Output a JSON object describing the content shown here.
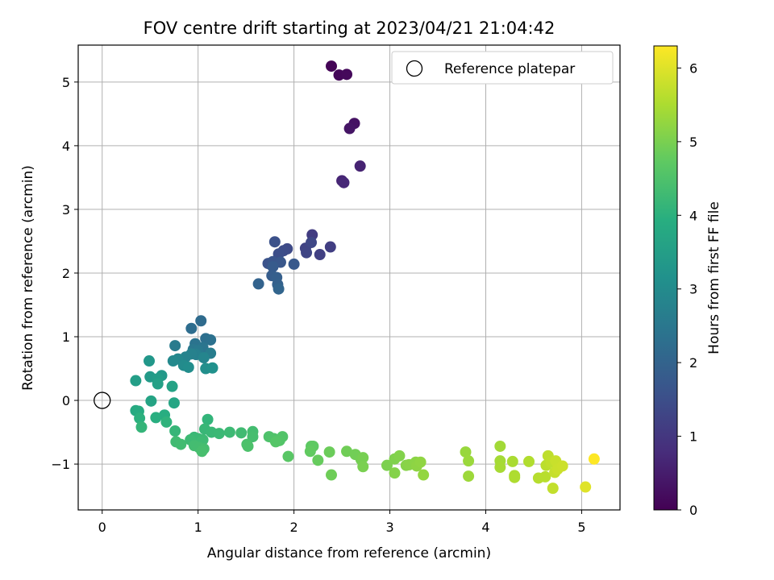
{
  "chart_data": {
    "type": "scatter",
    "title": "FOV centre drift starting at 2023/04/21 21:04:42",
    "xlabel": "Angular distance from reference (arcmin)",
    "ylabel": "Rotation from reference (arcmin)",
    "xlim": [
      -0.25,
      5.4
    ],
    "ylim": [
      -1.72,
      5.58
    ],
    "xticks": [
      0,
      1,
      2,
      3,
      4,
      5
    ],
    "yticks": [
      -1,
      0,
      1,
      2,
      3,
      4,
      5
    ],
    "grid": true,
    "legend": {
      "placement": "top-right",
      "entries": [
        "Reference platepar"
      ]
    },
    "colormap": "viridis",
    "colorbar": {
      "label": "Hours from first FF file",
      "range": [
        0,
        6.3
      ],
      "ticks": [
        0,
        1,
        2,
        3,
        4,
        5,
        6
      ]
    },
    "reference_point": {
      "name": "Reference platepar",
      "x": 0,
      "y": 0
    },
    "point_fields": [
      "x",
      "y",
      "hours"
    ],
    "points": [
      [
        2.39,
        5.25,
        0.05
      ],
      [
        2.47,
        5.11,
        0.1
      ],
      [
        2.55,
        5.12,
        0.15
      ],
      [
        2.63,
        4.35,
        0.3
      ],
      [
        2.58,
        4.27,
        0.35
      ],
      [
        2.69,
        3.68,
        0.6
      ],
      [
        2.5,
        3.45,
        0.65
      ],
      [
        2.52,
        3.42,
        0.7
      ],
      [
        2.19,
        2.6,
        1.1
      ],
      [
        2.38,
        2.41,
        1.15
      ],
      [
        2.27,
        2.29,
        1.2
      ],
      [
        2.12,
        2.39,
        1.25
      ],
      [
        2.13,
        2.32,
        1.3
      ],
      [
        2.18,
        2.48,
        1.35
      ],
      [
        1.93,
        2.38,
        1.4
      ],
      [
        1.89,
        2.35,
        1.45
      ],
      [
        1.84,
        2.3,
        1.5
      ],
      [
        1.8,
        2.49,
        1.55
      ],
      [
        1.73,
        2.15,
        1.6
      ],
      [
        1.78,
        2.18,
        1.65
      ],
      [
        1.86,
        2.17,
        1.7
      ],
      [
        2.0,
        2.14,
        1.75
      ],
      [
        1.78,
        2.1,
        1.8
      ],
      [
        1.77,
        1.96,
        1.85
      ],
      [
        1.82,
        1.93,
        1.9
      ],
      [
        1.83,
        1.82,
        1.95
      ],
      [
        1.63,
        1.83,
        2.0
      ],
      [
        1.84,
        1.75,
        2.05
      ],
      [
        1.03,
        1.25,
        2.2
      ],
      [
        0.93,
        1.13,
        2.25
      ],
      [
        1.08,
        0.97,
        2.3
      ],
      [
        1.13,
        0.95,
        2.35
      ],
      [
        0.97,
        0.89,
        2.4
      ],
      [
        1.05,
        0.83,
        2.45
      ],
      [
        0.95,
        0.8,
        2.5
      ],
      [
        1.0,
        0.78,
        2.55
      ],
      [
        0.76,
        0.86,
        2.6
      ],
      [
        1.13,
        0.74,
        2.65
      ],
      [
        0.98,
        0.72,
        2.7
      ],
      [
        0.93,
        0.73,
        2.75
      ],
      [
        0.87,
        0.68,
        2.8
      ],
      [
        1.06,
        0.67,
        2.85
      ],
      [
        0.79,
        0.65,
        2.9
      ],
      [
        0.74,
        0.62,
        2.95
      ],
      [
        0.85,
        0.55,
        3.0
      ],
      [
        0.9,
        0.52,
        3.05
      ],
      [
        1.08,
        0.5,
        3.1
      ],
      [
        1.15,
        0.51,
        3.15
      ],
      [
        0.49,
        0.62,
        3.3
      ],
      [
        0.62,
        0.39,
        3.35
      ],
      [
        0.5,
        0.37,
        3.4
      ],
      [
        0.58,
        0.34,
        3.45
      ],
      [
        0.35,
        0.31,
        3.5
      ],
      [
        0.58,
        0.26,
        3.55
      ],
      [
        0.73,
        0.22,
        3.6
      ],
      [
        0.51,
        -0.01,
        3.65
      ],
      [
        0.75,
        -0.04,
        3.7
      ],
      [
        0.35,
        -0.16,
        3.8
      ],
      [
        0.38,
        -0.17,
        3.85
      ],
      [
        0.65,
        -0.23,
        3.9
      ],
      [
        0.56,
        -0.27,
        3.95
      ],
      [
        0.39,
        -0.28,
        4.0
      ],
      [
        0.67,
        -0.34,
        4.05
      ],
      [
        1.1,
        -0.3,
        4.1
      ],
      [
        0.41,
        -0.42,
        4.12
      ],
      [
        0.76,
        -0.48,
        4.15
      ],
      [
        1.07,
        -0.45,
        4.18
      ],
      [
        1.14,
        -0.5,
        4.2
      ],
      [
        1.22,
        -0.52,
        4.22
      ],
      [
        1.33,
        -0.5,
        4.25
      ],
      [
        1.45,
        -0.51,
        4.3
      ],
      [
        1.57,
        -0.49,
        4.35
      ],
      [
        1.57,
        -0.57,
        4.38
      ],
      [
        0.96,
        -0.58,
        4.2
      ],
      [
        1.0,
        -0.6,
        4.22
      ],
      [
        1.05,
        -0.62,
        4.25
      ],
      [
        0.92,
        -0.62,
        4.26
      ],
      [
        1.03,
        -0.66,
        4.28
      ],
      [
        0.77,
        -0.65,
        4.3
      ],
      [
        0.82,
        -0.69,
        4.32
      ],
      [
        0.96,
        -0.71,
        4.34
      ],
      [
        1.01,
        -0.74,
        4.36
      ],
      [
        1.06,
        -0.76,
        4.38
      ],
      [
        1.04,
        -0.8,
        4.4
      ],
      [
        1.51,
        -0.69,
        4.45
      ],
      [
        1.52,
        -0.72,
        4.48
      ],
      [
        1.74,
        -0.57,
        4.5
      ],
      [
        1.79,
        -0.6,
        4.52
      ],
      [
        1.88,
        -0.57,
        4.55
      ],
      [
        1.85,
        -0.63,
        4.57
      ],
      [
        1.81,
        -0.65,
        4.6
      ],
      [
        1.94,
        -0.88,
        4.65
      ],
      [
        2.18,
        -0.72,
        4.7
      ],
      [
        2.2,
        -0.72,
        4.72
      ],
      [
        2.17,
        -0.8,
        4.75
      ],
      [
        2.25,
        -0.94,
        4.8
      ],
      [
        2.37,
        -0.81,
        4.85
      ],
      [
        2.39,
        -1.17,
        4.88
      ],
      [
        2.55,
        -0.8,
        4.9
      ],
      [
        2.64,
        -0.85,
        4.92
      ],
      [
        2.7,
        -0.93,
        4.95
      ],
      [
        2.72,
        -0.9,
        4.97
      ],
      [
        2.72,
        -1.04,
        5.0
      ],
      [
        2.97,
        -1.02,
        5.02
      ],
      [
        3.05,
        -0.92,
        5.05
      ],
      [
        3.1,
        -0.87,
        5.08
      ],
      [
        3.05,
        -1.14,
        5.1
      ],
      [
        3.17,
        -1.02,
        5.12
      ],
      [
        3.2,
        -1.01,
        5.15
      ],
      [
        3.27,
        -0.97,
        5.17
      ],
      [
        3.28,
        -1.03,
        5.2
      ],
      [
        3.32,
        -0.97,
        5.22
      ],
      [
        3.35,
        -1.17,
        5.25
      ],
      [
        3.79,
        -0.81,
        5.3
      ],
      [
        3.82,
        -0.95,
        5.33
      ],
      [
        3.82,
        -1.19,
        5.35
      ],
      [
        4.15,
        -0.72,
        5.4
      ],
      [
        4.15,
        -0.95,
        5.42
      ],
      [
        4.15,
        -1.05,
        5.45
      ],
      [
        4.28,
        -0.96,
        5.48
      ],
      [
        4.3,
        -1.18,
        5.5
      ],
      [
        4.3,
        -1.21,
        5.52
      ],
      [
        4.45,
        -0.96,
        5.55
      ],
      [
        4.55,
        -1.22,
        5.6
      ],
      [
        4.62,
        -1.2,
        5.62
      ],
      [
        4.63,
        -1.02,
        5.65
      ],
      [
        4.65,
        -0.87,
        5.68
      ],
      [
        4.68,
        -0.97,
        5.7
      ],
      [
        4.7,
        -1.38,
        5.72
      ],
      [
        4.72,
        -1.13,
        5.75
      ],
      [
        4.73,
        -0.95,
        5.78
      ],
      [
        4.75,
        -1.08,
        5.8
      ],
      [
        4.8,
        -1.03,
        5.82
      ],
      [
        5.04,
        -1.36,
        6.0
      ],
      [
        5.13,
        -0.92,
        6.3
      ]
    ]
  }
}
